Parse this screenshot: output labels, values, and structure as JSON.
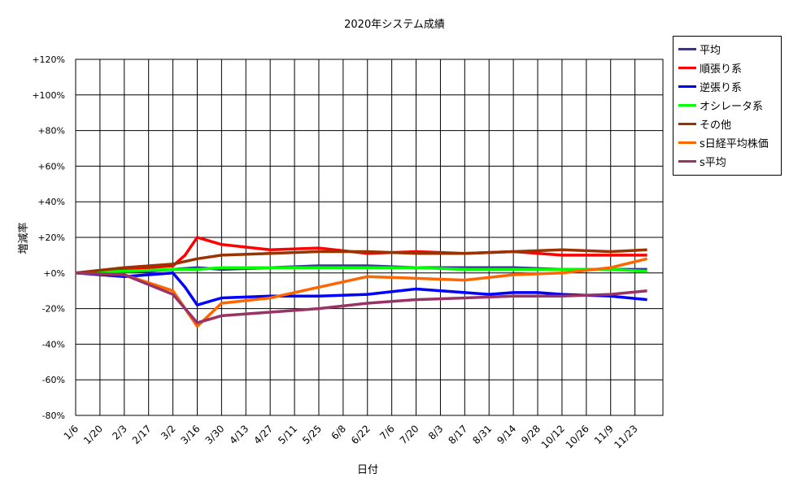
{
  "chart_data": {
    "type": "line",
    "title": "2020年システム成績",
    "xlabel": "日付",
    "ylabel": "増減率",
    "ylim": [
      -80,
      120
    ],
    "y_ticks": [
      {
        "v": 120,
        "label": "+120%"
      },
      {
        "v": 100,
        "label": "+100%"
      },
      {
        "v": 80,
        "label": "+80%"
      },
      {
        "v": 60,
        "label": "+60%"
      },
      {
        "v": 40,
        "label": "+40%"
      },
      {
        "v": 20,
        "label": "+20%"
      },
      {
        "v": 0,
        "label": "+0%"
      },
      {
        "v": -20,
        "label": "-20%"
      },
      {
        "v": -40,
        "label": "-40%"
      },
      {
        "v": -60,
        "label": "-60%"
      },
      {
        "v": -80,
        "label": "-80%"
      }
    ],
    "x_ticks": [
      "1/6",
      "1/20",
      "2/3",
      "2/17",
      "3/2",
      "3/16",
      "3/30",
      "4/13",
      "4/27",
      "5/11",
      "5/25",
      "6/8",
      "6/22",
      "7/6",
      "7/20",
      "8/3",
      "8/17",
      "8/31",
      "9/14",
      "9/28",
      "10/12",
      "10/26",
      "11/9",
      "11/23"
    ],
    "grid": true,
    "legend_position": "right",
    "series": [
      {
        "name": "平均",
        "color": "#33339a",
        "x_index": [
          0,
          3,
          4,
          5,
          6,
          8,
          10,
          12,
          14,
          16,
          18,
          20,
          22,
          23.5
        ],
        "values": [
          0,
          1,
          2,
          3,
          2,
          3,
          4,
          4,
          3,
          3,
          3,
          2,
          2,
          2
        ]
      },
      {
        "name": "順張り系",
        "color": "#ff0000",
        "x_index": [
          0,
          2,
          3,
          4,
          4.5,
          5,
          6,
          8,
          10,
          12,
          14,
          16,
          18,
          20,
          22,
          23.5
        ],
        "values": [
          0,
          2,
          3,
          4,
          10,
          20,
          16,
          13,
          14,
          11,
          12,
          11,
          12,
          10,
          10,
          10
        ]
      },
      {
        "name": "逆張り系",
        "color": "#0000ff",
        "x_index": [
          0,
          2,
          3,
          4,
          4.5,
          5,
          6,
          8,
          10,
          12,
          14,
          16,
          17,
          18,
          19,
          20,
          22,
          23.5
        ],
        "values": [
          0,
          -2,
          -1,
          0,
          -8,
          -18,
          -14,
          -13,
          -13,
          -12,
          -9,
          -11,
          -12,
          -11,
          -11,
          -12,
          -13,
          -15
        ]
      },
      {
        "name": "オシレータ系",
        "color": "#00ff00",
        "x_index": [
          0,
          2,
          4,
          5,
          6,
          8,
          10,
          12,
          14,
          16,
          18,
          20,
          22,
          23.5
        ],
        "values": [
          0,
          1,
          2,
          2,
          3,
          3,
          3,
          3,
          3,
          2,
          2,
          2,
          2,
          1
        ]
      },
      {
        "name": "その他",
        "color": "#993300",
        "x_index": [
          0,
          2,
          4,
          5,
          6,
          8,
          10,
          12,
          14,
          16,
          18,
          20,
          22,
          23.5
        ],
        "values": [
          0,
          3,
          5,
          8,
          10,
          11,
          12,
          12,
          11,
          11,
          12,
          13,
          12,
          13
        ]
      },
      {
        "name": "s日経平均株価",
        "color": "#ff6600",
        "x_index": [
          0,
          2,
          4,
          5,
          6,
          8,
          10,
          12,
          14,
          16,
          18,
          20,
          22,
          23.5
        ],
        "values": [
          0,
          -1,
          -10,
          -30,
          -17,
          -14,
          -8,
          -2,
          -3,
          -4,
          -1,
          0,
          3,
          8
        ]
      },
      {
        "name": "s平均",
        "color": "#993366",
        "x_index": [
          0,
          2,
          4,
          5,
          6,
          8,
          10,
          12,
          14,
          16,
          18,
          20,
          22,
          23.5
        ],
        "values": [
          0,
          -1,
          -12,
          -28,
          -24,
          -22,
          -20,
          -17,
          -15,
          -14,
          -13,
          -13,
          -12,
          -10
        ]
      }
    ]
  }
}
